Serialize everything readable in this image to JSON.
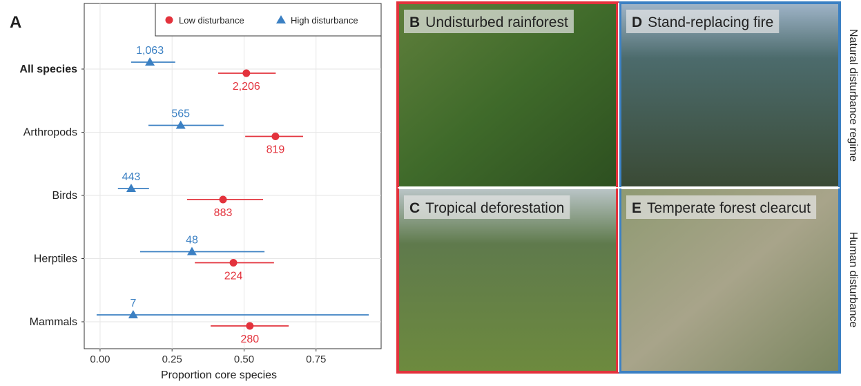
{
  "chart_data": {
    "type": "dot-range",
    "panel_label": "A",
    "x_label": "Proportion core species",
    "categories": [
      "All species",
      "Arthropods",
      "Birds",
      "Herptiles",
      "Mammals"
    ],
    "xlim": [
      -0.055,
      0.976
    ],
    "xticks": [
      {
        "value": 0,
        "label": "0.00"
      },
      {
        "value": 0.25,
        "label": "0.25"
      },
      {
        "value": 0.5,
        "label": "0.50"
      },
      {
        "value": 0.75,
        "label": "0.75"
      }
    ],
    "grid": true,
    "legend": "top-right",
    "series": [
      {
        "name": "Low disturbance",
        "color": "#e3323c",
        "marker": "circle",
        "values": [
          0.508,
          0.609,
          0.427,
          0.463,
          0.52
        ],
        "lower": [
          0.41,
          0.504,
          0.302,
          0.329,
          0.384
        ],
        "upper": [
          0.61,
          0.705,
          0.566,
          0.604,
          0.655
        ],
        "labels": [
          "2,206",
          "819",
          "883",
          "224",
          "280"
        ]
      },
      {
        "name": "High disturbance",
        "color": "#3b80c3",
        "marker": "triangle",
        "values": [
          0.173,
          0.28,
          0.108,
          0.319,
          0.115
        ],
        "lower": [
          0.108,
          0.168,
          0.062,
          0.139,
          -0.012
        ],
        "upper": [
          0.261,
          0.429,
          0.17,
          0.571,
          0.933
        ],
        "labels": [
          "1,063",
          "565",
          "443",
          "48",
          "7"
        ]
      }
    ]
  },
  "photos": {
    "panels": [
      {
        "letter": "B",
        "title": "Undisturbed rainforest"
      },
      {
        "letter": "D",
        "title": "Stand-replacing fire"
      },
      {
        "letter": "C",
        "title": "Tropical deforestation"
      },
      {
        "letter": "E",
        "title": "Temperate forest clearcut"
      }
    ],
    "row_labels": [
      "Natural disturbance regime",
      "Human disturbance"
    ]
  }
}
